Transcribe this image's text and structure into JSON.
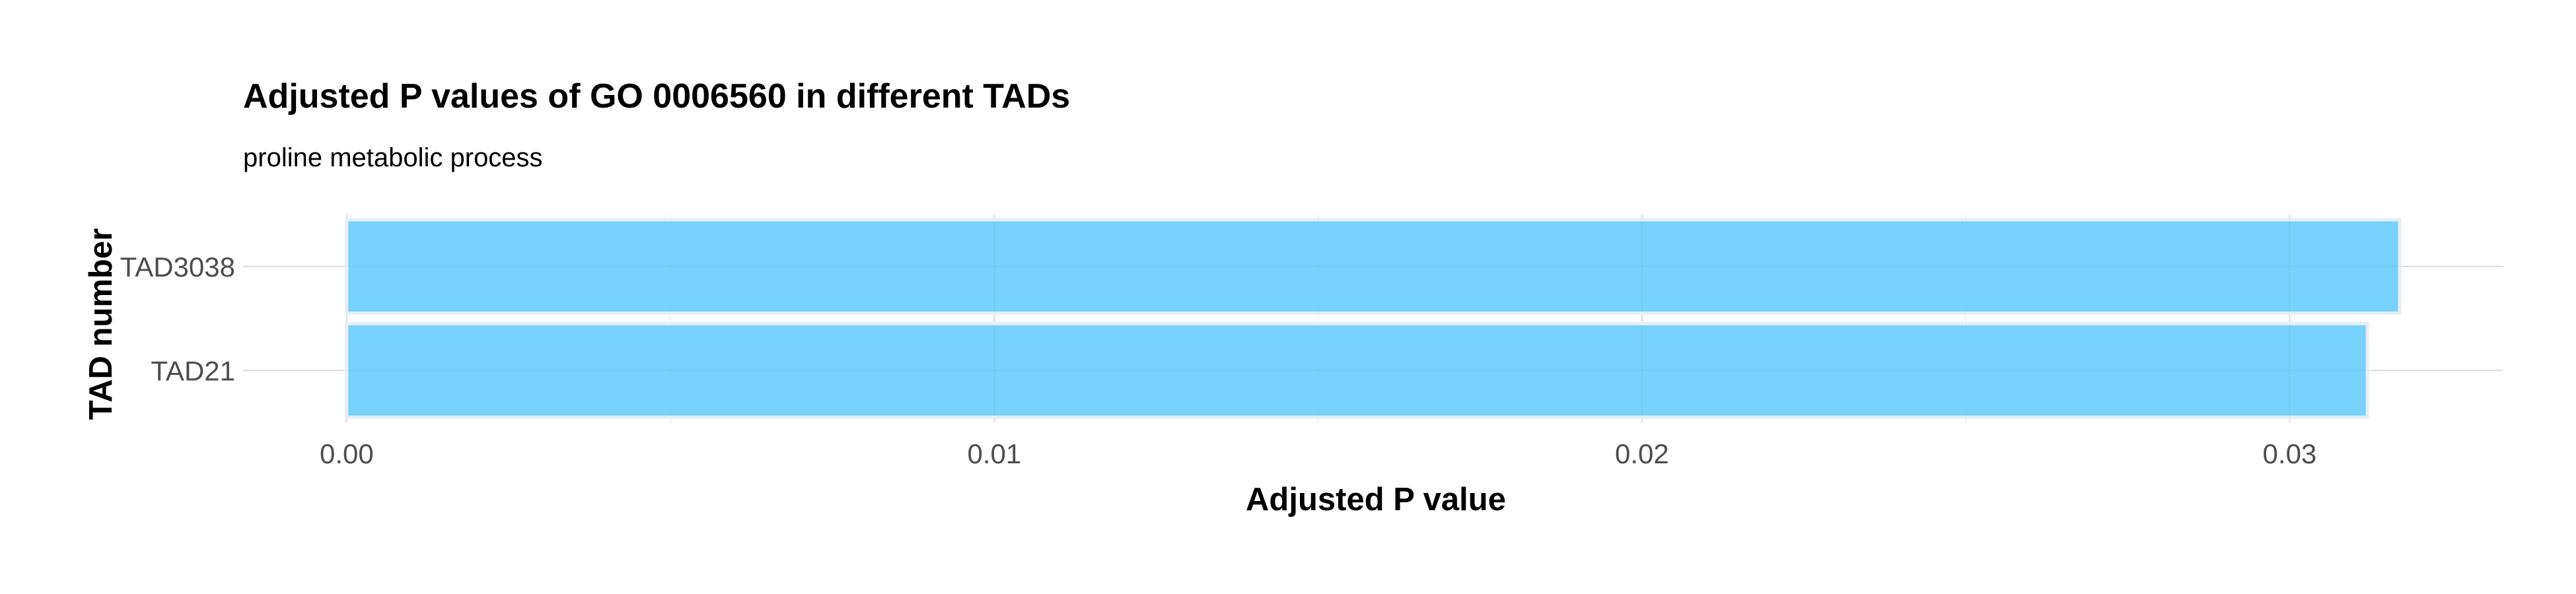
{
  "chart_data": {
    "type": "bar",
    "orientation": "horizontal",
    "title": "Adjusted P values of GO 0006560 in different TADs",
    "subtitle": "proline metabolic process",
    "xlabel": "Adjusted P value",
    "ylabel": "TAD number",
    "categories": [
      "TAD21",
      "TAD3038"
    ],
    "values": [
      0.0312,
      0.0317
    ],
    "xlim": [
      -0.0016,
      0.0333
    ],
    "xticks": [
      0.0,
      0.01,
      0.02,
      0.03
    ],
    "xtick_labels": [
      "0.00",
      "0.01",
      "0.02",
      "0.03"
    ],
    "grid": true,
    "legend": "none",
    "colors": {
      "bar_fill": "#5ac8fa",
      "bar_fill_opacity": 0.82,
      "bar_outline": "#e6eef5",
      "grid_major": "#dedede",
      "grid_minor": "#ececec",
      "tick_text": "#4d4d4d",
      "title_text": "#000000",
      "background": "#ffffff"
    }
  }
}
